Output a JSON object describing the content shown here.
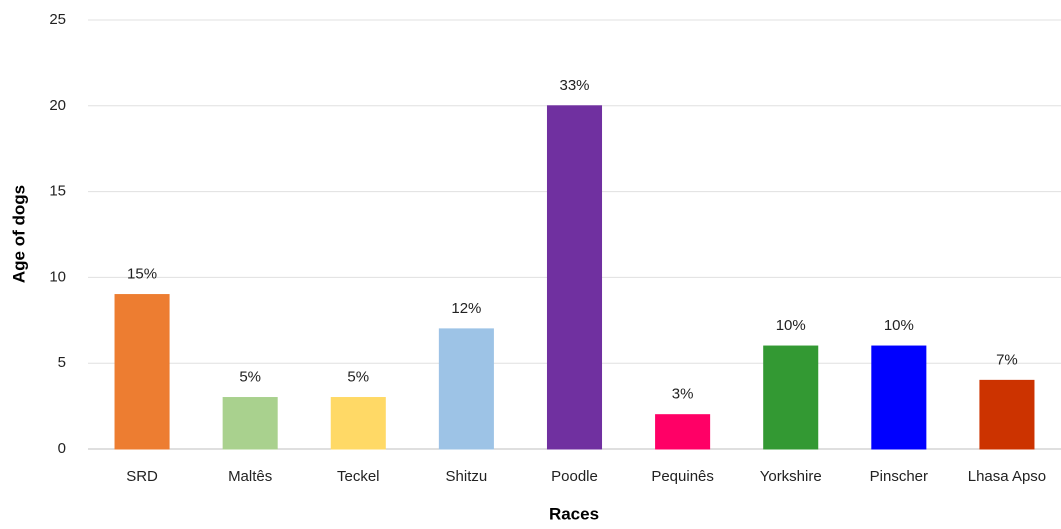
{
  "chart_data": {
    "type": "bar",
    "x_label": "Races",
    "y_label": "Age of dogs",
    "categories": [
      "SRD",
      "Maltês",
      "Teckel",
      "Shitzu",
      "Poodle",
      "Pequinês",
      "Yorkshire",
      "Pinscher",
      "Lhasa Apso"
    ],
    "values": [
      9,
      3,
      3,
      7,
      20,
      2,
      6,
      6,
      4
    ],
    "bar_labels": [
      "15%",
      "5%",
      "5%",
      "12%",
      "33%",
      "3%",
      "10%",
      "10%",
      "7%"
    ],
    "colors": [
      "#ed7d31",
      "#a9d18e",
      "#ffd966",
      "#9dc3e6",
      "#7030a0",
      "#ff0066",
      "#339933",
      "#0000ff",
      "#cc3300"
    ],
    "ylim": [
      0,
      25
    ],
    "yticks": [
      0,
      5,
      10,
      15,
      20,
      25
    ],
    "grid": true
  }
}
